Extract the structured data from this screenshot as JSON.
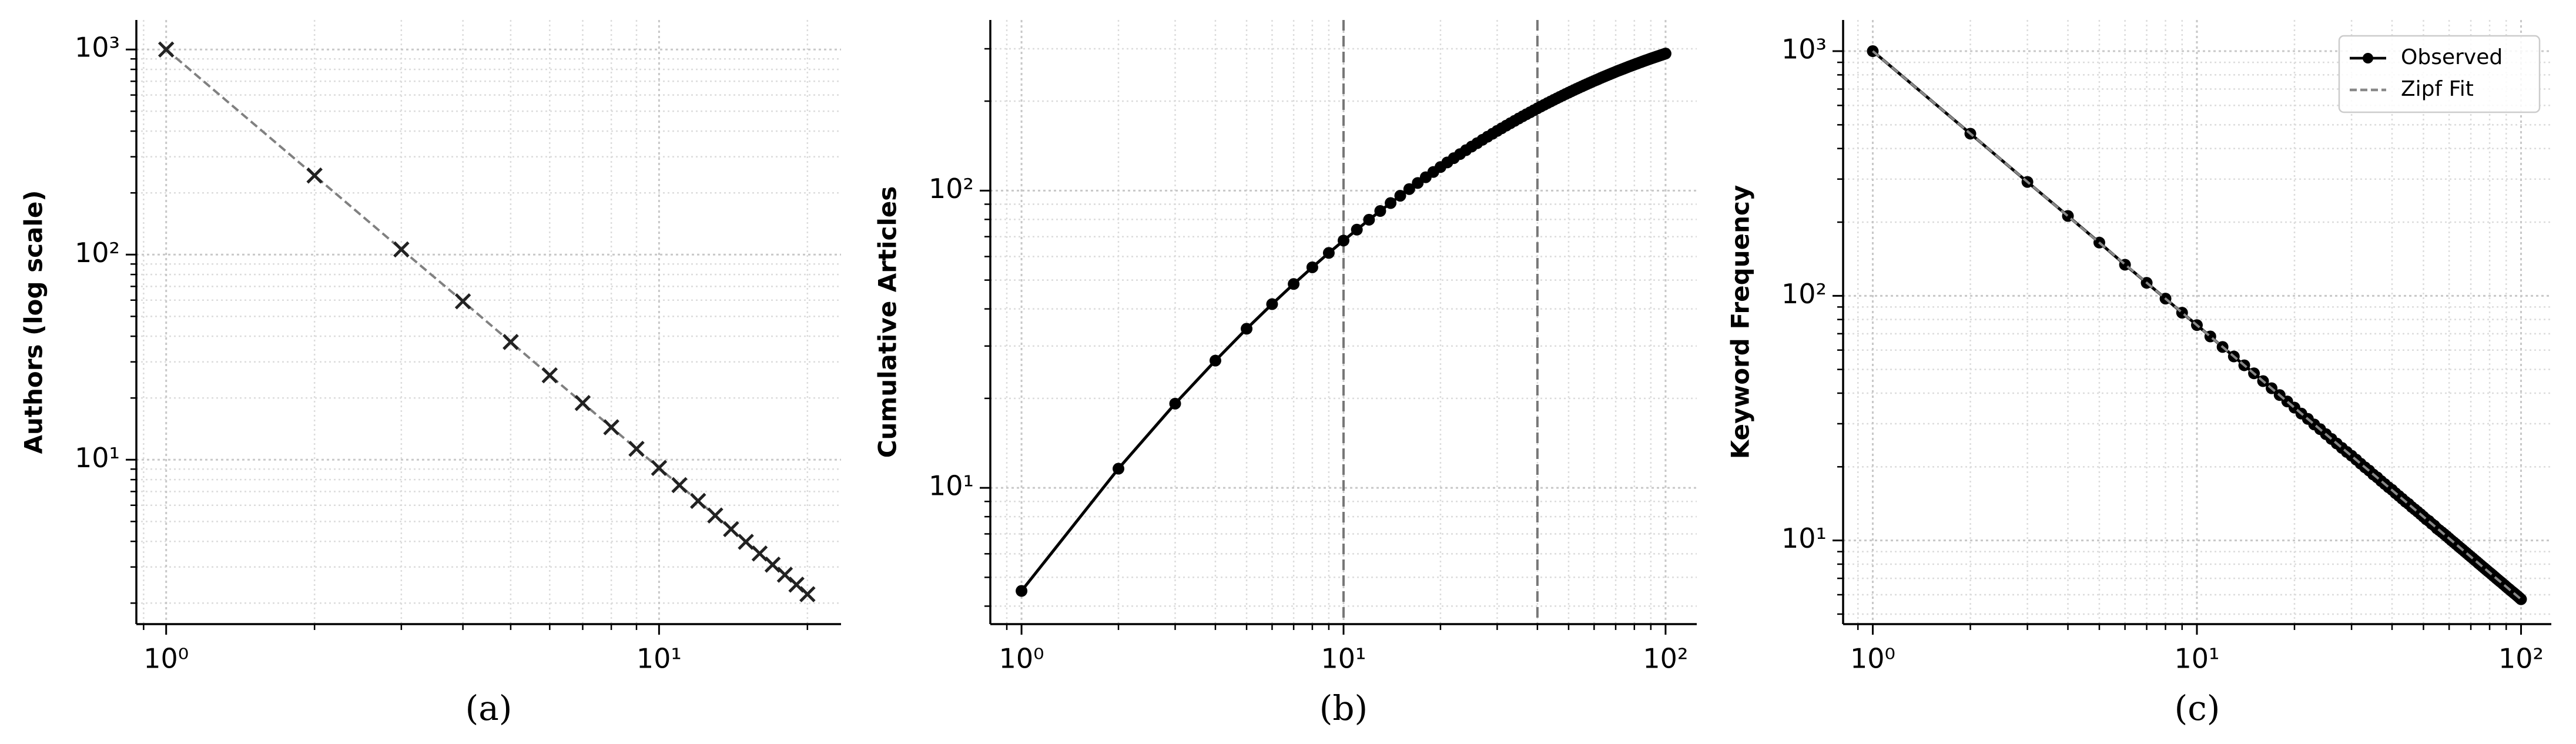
{
  "chart_data": [
    {
      "type": "line",
      "caption": "(a)",
      "ylabel": "Authors (log scale)",
      "xscale": "log",
      "yscale": "log",
      "xlim": [
        0.87,
        23.4
      ],
      "ylim": [
        1.58,
        1393
      ],
      "xticks": [
        {
          "value": 1,
          "label": "10⁰"
        },
        {
          "value": 10,
          "label": "10¹"
        }
      ],
      "yticks": [
        {
          "value": 10,
          "label": "10¹"
        },
        {
          "value": 100,
          "label": "10²"
        },
        {
          "value": 1000,
          "label": "10³"
        }
      ],
      "grid": true,
      "minor_grid": true,
      "series": [
        {
          "color": "#808080",
          "line_style": "dashed",
          "marker": "x",
          "marker_color": "#222222",
          "x": [
            1,
            2,
            3,
            4,
            5,
            6,
            7,
            8,
            9,
            10,
            11,
            12,
            13,
            14,
            15,
            16,
            17,
            18,
            19,
            20
          ],
          "values": [
            1000,
            243,
            106,
            59.2,
            37.5,
            25.8,
            18.9,
            14.4,
            11.3,
            9.12,
            7.52,
            6.3,
            5.35,
            4.59,
            3.98,
            3.49,
            3.08,
            2.75,
            2.46,
            2.21
          ]
        }
      ]
    },
    {
      "type": "line",
      "caption": "(b)",
      "ylabel": "Cumulative Articles",
      "xscale": "log",
      "yscale": "log",
      "xlim": [
        0.8,
        125
      ],
      "ylim": [
        3.48,
        375
      ],
      "xticks": [
        {
          "value": 1,
          "label": "10⁰"
        },
        {
          "value": 10,
          "label": "10¹"
        },
        {
          "value": 100,
          "label": "10²"
        }
      ],
      "yticks": [
        {
          "value": 10,
          "label": "10¹"
        },
        {
          "value": 100,
          "label": "10²"
        }
      ],
      "grid": true,
      "minor_grid": true,
      "vlines": [
        10,
        40
      ],
      "vline_color": "#777777",
      "series": [
        {
          "color": "#000000",
          "line_style": "solid",
          "marker": "o",
          "marker_color": "#000000",
          "x": [
            1,
            2,
            3,
            4,
            5,
            6,
            7,
            8,
            9,
            10,
            11,
            12,
            13,
            14,
            15,
            16,
            17,
            18,
            19,
            20,
            21,
            22,
            23,
            24,
            25,
            26,
            27,
            28,
            29,
            30,
            31,
            32,
            33,
            34,
            35,
            36,
            37,
            38,
            39,
            40,
            41,
            42,
            43,
            44,
            45,
            46,
            47,
            48,
            49,
            50,
            51,
            52,
            53,
            54,
            55,
            56,
            57,
            58,
            59,
            60,
            61,
            62,
            63,
            64,
            65,
            66,
            67,
            68,
            69,
            70,
            71,
            72,
            73,
            74,
            75,
            76,
            77,
            78,
            79,
            80,
            81,
            82,
            83,
            84,
            85,
            86,
            87,
            88,
            89,
            90,
            91,
            92,
            93,
            94,
            95,
            96,
            97,
            98,
            99,
            100
          ],
          "values": [
            4.5,
            11.6,
            19.2,
            26.8,
            34.3,
            41.5,
            48.5,
            55.2,
            61.7,
            67.9,
            73.9,
            79.8,
            85.4,
            90.8,
            96.1,
            101.2,
            106.1,
            110.9,
            115.5,
            120.0,
            124.4,
            128.6,
            132.7,
            136.8,
            140.7,
            144.4,
            148.2,
            151.8,
            155.3,
            158.8,
            162.1,
            165.4,
            168.6,
            171.7,
            174.8,
            177.8,
            180.7,
            183.5,
            186.3,
            189.1,
            191.8,
            194.4,
            197.0,
            199.5,
            202.0,
            204.4,
            206.8,
            209.1,
            211.4,
            213.6,
            215.8,
            218.0,
            220.1,
            222.2,
            224.2,
            226.2,
            228.2,
            230.1,
            232.0,
            233.9,
            235.7,
            237.5,
            239.3,
            241.1,
            242.8,
            244.5,
            246.1,
            247.8,
            249.4,
            251.0,
            252.6,
            254.1,
            255.6,
            257.0,
            258.5,
            260.0,
            261.4,
            262.8,
            264.1,
            265.5,
            266.8,
            268.1,
            269.5,
            270.7,
            272.0,
            273.3,
            274.5,
            275.7,
            276.9,
            278.1,
            279.2,
            280.4,
            281.5,
            282.6,
            283.7,
            284.8,
            285.9,
            287.0,
            288.0,
            289.1
          ]
        }
      ]
    },
    {
      "type": "line",
      "caption": "(c)",
      "ylabel": "Keyword Frequency",
      "xscale": "log",
      "yscale": "log",
      "xlim": [
        0.81,
        124
      ],
      "ylim": [
        4.55,
        1341
      ],
      "xticks": [
        {
          "value": 1,
          "label": "10⁰"
        },
        {
          "value": 10,
          "label": "10¹"
        },
        {
          "value": 100,
          "label": "10²"
        }
      ],
      "yticks": [
        {
          "value": 10,
          "label": "10¹"
        },
        {
          "value": 100,
          "label": "10²"
        },
        {
          "value": 1000,
          "label": "10³"
        }
      ],
      "grid": true,
      "minor_grid": true,
      "legend": "upper right",
      "series": [
        {
          "name": "Observed",
          "color": "#000000",
          "line_style": "solid",
          "marker": "o",
          "marker_color": "#000000",
          "x": [
            1,
            2,
            3,
            4,
            5,
            6,
            7,
            8,
            9,
            10,
            11,
            12,
            13,
            14,
            15,
            16,
            17,
            18,
            19,
            20,
            21,
            22,
            23,
            24,
            25,
            26,
            27,
            28,
            29,
            30,
            31,
            32,
            33,
            34,
            35,
            36,
            37,
            38,
            39,
            40,
            41,
            42,
            43,
            44,
            45,
            46,
            47,
            48,
            49,
            50,
            51,
            52,
            53,
            54,
            55,
            56,
            57,
            58,
            59,
            60,
            61,
            62,
            63,
            64,
            65,
            66,
            67,
            68,
            69,
            70,
            71,
            72,
            73,
            74,
            75,
            76,
            77,
            78,
            79,
            80,
            81,
            82,
            83,
            84,
            85,
            86,
            87,
            88,
            89,
            90,
            91,
            92,
            93,
            94,
            95,
            96,
            97,
            98,
            99,
            100
          ],
          "values": [
            1000,
            460,
            292,
            212,
            165,
            134,
            113,
            97.4,
            85.3,
            75.9,
            68.2,
            61.8,
            56.5,
            52.0,
            48.2,
            44.8,
            41.9,
            39.3,
            37.0,
            34.9,
            33.0,
            31.4,
            29.8,
            28.5,
            27.2,
            26.0,
            24.9,
            23.9,
            23.0,
            22.2,
            21.4,
            20.6,
            19.9,
            19.3,
            18.6,
            18.1,
            17.5,
            17.0,
            16.5,
            16.1,
            15.6,
            15.2,
            14.8,
            14.4,
            14.1,
            13.7,
            13.4,
            13.1,
            12.8,
            12.5,
            12.2,
            12.0,
            11.7,
            11.5,
            11.2,
            11.0,
            10.8,
            10.6,
            10.4,
            10.2,
            10.0,
            9.83,
            9.66,
            9.49,
            9.32,
            9.17,
            9.01,
            8.87,
            8.72,
            8.58,
            8.45,
            8.31,
            8.19,
            8.06,
            7.94,
            7.82,
            7.71,
            7.6,
            7.49,
            7.39,
            7.29,
            7.19,
            7.09,
            6.99,
            6.9,
            6.81,
            6.73,
            6.64,
            6.56,
            6.47,
            6.39,
            6.32,
            6.24,
            6.17,
            6.1,
            6.03,
            5.96,
            5.89,
            5.82,
            5.75
          ]
        },
        {
          "name": "Zipf Fit",
          "color": "#888888",
          "line_style": "dashed",
          "x": [
            1,
            100
          ],
          "values": [
            1000,
            5.75
          ]
        }
      ]
    }
  ]
}
